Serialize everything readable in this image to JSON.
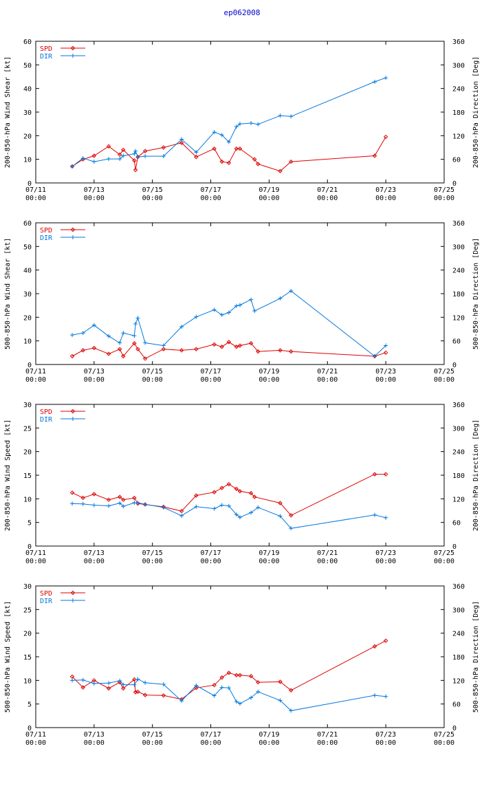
{
  "title": "ep062008",
  "x_ticks": [
    {
      "day": 11,
      "line1": "07/11",
      "line2": "00:00"
    },
    {
      "day": 13,
      "line1": "07/13",
      "line2": "00:00"
    },
    {
      "day": 15,
      "line1": "07/15",
      "line2": "00:00"
    },
    {
      "day": 17,
      "line1": "07/17",
      "line2": "00:00"
    },
    {
      "day": 19,
      "line1": "07/19",
      "line2": "00:00"
    },
    {
      "day": 21,
      "line1": "07/21",
      "line2": "00:00"
    },
    {
      "day": 23,
      "line1": "07/23",
      "line2": "00:00"
    },
    {
      "day": 25,
      "line1": "07/25",
      "line2": "00:00"
    }
  ],
  "colors": {
    "spd": "#dd0000",
    "dir": "#0077dd"
  },
  "legend": {
    "spd": "SPD",
    "dir": "DIR"
  },
  "chart_data": [
    {
      "type": "line",
      "xlabel": "",
      "ylabel_left": "200-850-hPa Wind Shear [kt]",
      "ylabel_right": "200-850-hPa Direction [Deg]",
      "xlim": [
        11,
        25
      ],
      "ylim_left": [
        0,
        60
      ],
      "yticks_left": [
        0,
        10,
        20,
        30,
        40,
        50,
        60
      ],
      "ylim_right": [
        0,
        360
      ],
      "yticks_right": [
        0,
        60,
        120,
        180,
        240,
        300,
        360
      ],
      "series": [
        {
          "name": "SPD",
          "axis": "left",
          "x": [
            12.25,
            12.62,
            13.0,
            13.5,
            13.88,
            14.0,
            14.38,
            14.42,
            14.5,
            14.75,
            15.38,
            16.0,
            16.5,
            17.12,
            17.38,
            17.62,
            17.88,
            18.0,
            18.5,
            18.62,
            19.38,
            19.75,
            22.62,
            23.0
          ],
          "values": [
            7,
            10,
            11.5,
            15.5,
            12,
            14,
            9.5,
            5.5,
            11,
            13.5,
            15,
            17,
            11,
            14.5,
            9,
            8.5,
            14.5,
            14.5,
            10,
            8,
            5,
            9,
            11.5,
            19.5
          ]
        },
        {
          "name": "DIR",
          "axis": "right",
          "x": [
            12.25,
            12.62,
            13.0,
            13.5,
            13.88,
            14.0,
            14.38,
            14.42,
            14.5,
            14.75,
            15.38,
            16.0,
            16.5,
            17.12,
            17.38,
            17.62,
            17.88,
            18.0,
            18.38,
            18.62,
            19.38,
            19.75,
            22.62,
            23.0
          ],
          "values": [
            42,
            63,
            54,
            61,
            61,
            69,
            74,
            81,
            66,
            68,
            68,
            111,
            78,
            129,
            122,
            104,
            143,
            150,
            152,
            149,
            171,
            169,
            257,
            267
          ]
        }
      ]
    },
    {
      "type": "line",
      "xlabel": "",
      "ylabel_left": "500-850-hPa Wind Shear [kt]",
      "ylabel_right": "500-850-hPa Direction [Deg]",
      "xlim": [
        11,
        25
      ],
      "ylim_left": [
        0,
        60
      ],
      "yticks_left": [
        0,
        10,
        20,
        30,
        40,
        50,
        60
      ],
      "ylim_right": [
        0,
        360
      ],
      "yticks_right": [
        0,
        60,
        120,
        180,
        240,
        300,
        360
      ],
      "series": [
        {
          "name": "SPD",
          "axis": "left",
          "x": [
            12.25,
            12.62,
            13.0,
            13.5,
            13.88,
            14.0,
            14.38,
            14.5,
            14.75,
            15.38,
            16.0,
            16.5,
            17.12,
            17.38,
            17.62,
            17.88,
            18.0,
            18.38,
            18.62,
            19.38,
            19.75,
            22.62,
            23.0
          ],
          "values": [
            3.5,
            6,
            7,
            4.5,
            6.5,
            3.5,
            9,
            6.5,
            2.5,
            6.5,
            6,
            6.5,
            8.5,
            7.5,
            9.5,
            7.5,
            8,
            9,
            5.5,
            6,
            5.5,
            3.5,
            5
          ]
        },
        {
          "name": "DIR",
          "axis": "right",
          "x": [
            12.25,
            12.62,
            13.0,
            13.5,
            13.88,
            14.0,
            14.38,
            14.42,
            14.5,
            14.75,
            15.38,
            16.0,
            16.5,
            17.12,
            17.38,
            17.62,
            17.88,
            18.0,
            18.38,
            18.5,
            19.38,
            19.75,
            22.62,
            23.0
          ],
          "values": [
            75,
            80,
            100,
            72,
            55,
            80,
            73,
            103,
            118,
            55,
            48,
            96,
            121,
            139,
            126,
            132,
            149,
            151,
            165,
            136,
            168,
            187,
            21,
            48
          ]
        }
      ]
    },
    {
      "type": "line",
      "xlabel": "",
      "ylabel_left": "200-850-hPa Wind Speed [kt]",
      "ylabel_right": "200-850-hPa Direction [Deg]",
      "xlim": [
        11,
        25
      ],
      "ylim_left": [
        0,
        30
      ],
      "yticks_left": [
        0,
        5,
        10,
        15,
        20,
        25,
        30
      ],
      "ylim_right": [
        0,
        360
      ],
      "yticks_right": [
        0,
        60,
        120,
        180,
        240,
        300,
        360
      ],
      "series": [
        {
          "name": "SPD",
          "axis": "left",
          "x": [
            12.25,
            12.62,
            13.0,
            13.5,
            13.88,
            14.0,
            14.38,
            14.5,
            14.75,
            15.38,
            16.0,
            16.5,
            17.12,
            17.38,
            17.62,
            17.88,
            18.0,
            18.38,
            18.5,
            19.38,
            19.75,
            22.62,
            23.0
          ],
          "values": [
            11.3,
            10.2,
            11,
            9.8,
            10.4,
            9.8,
            10.2,
            9,
            8.8,
            8.3,
            7.4,
            10.7,
            11.4,
            12.3,
            13.1,
            12.1,
            11.6,
            11.2,
            10.4,
            9.1,
            6.5,
            15.2,
            15.2
          ]
        },
        {
          "name": "DIR",
          "axis": "right",
          "x": [
            12.25,
            12.62,
            13.0,
            13.5,
            13.88,
            14.0,
            14.38,
            14.5,
            14.75,
            15.38,
            16.0,
            16.5,
            17.12,
            17.38,
            17.62,
            17.88,
            18.0,
            18.38,
            18.62,
            19.38,
            19.75,
            22.62,
            23.0
          ],
          "values": [
            108,
            107,
            104,
            102,
            109,
            101,
            110,
            110,
            106,
            98,
            77,
            100,
            95,
            104,
            102,
            80,
            73,
            85,
            98,
            76,
            45,
            79,
            72
          ]
        }
      ]
    },
    {
      "type": "line",
      "xlabel": "",
      "ylabel_left": "500-850-hPa Wind Speed [kt]",
      "ylabel_right": "500-850-hPa Direction [Deg]",
      "xlim": [
        11,
        25
      ],
      "ylim_left": [
        0,
        30
      ],
      "yticks_left": [
        0,
        5,
        10,
        15,
        20,
        25,
        30
      ],
      "ylim_right": [
        0,
        360
      ],
      "yticks_right": [
        0,
        60,
        120,
        180,
        240,
        300,
        360
      ],
      "series": [
        {
          "name": "SPD",
          "axis": "left",
          "x": [
            12.25,
            12.62,
            13.0,
            13.5,
            13.88,
            14.0,
            14.38,
            14.42,
            14.5,
            14.75,
            15.38,
            16.0,
            16.5,
            17.12,
            17.38,
            17.62,
            17.88,
            18.0,
            18.38,
            18.62,
            19.38,
            19.75,
            22.62,
            23.0
          ],
          "values": [
            10.8,
            8.5,
            10,
            8.3,
            9.6,
            8.3,
            10.2,
            7.5,
            7.6,
            6.9,
            6.8,
            6,
            8.4,
            9,
            10.6,
            11.6,
            11.1,
            11.1,
            10.9,
            9.6,
            9.7,
            7.9,
            17.2,
            18.4
          ]
        },
        {
          "name": "DIR",
          "axis": "right",
          "x": [
            12.25,
            12.62,
            13.0,
            13.5,
            13.88,
            14.0,
            14.38,
            14.5,
            14.75,
            15.38,
            16.0,
            16.5,
            17.12,
            17.38,
            17.62,
            17.88,
            18.0,
            18.38,
            18.62,
            19.38,
            19.75,
            22.62,
            23.0
          ],
          "values": [
            120,
            121,
            112,
            113,
            119,
            109,
            109,
            123,
            114,
            110,
            68,
            107,
            81,
            102,
            101,
            66,
            61,
            76,
            91,
            69,
            43,
            82,
            79
          ]
        }
      ]
    }
  ]
}
